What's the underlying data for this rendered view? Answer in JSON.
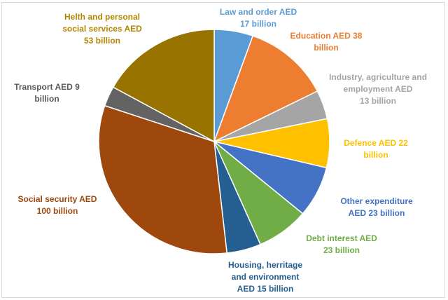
{
  "chart_data": {
    "type": "pie",
    "start": "top, clockwise",
    "slices": [
      {
        "label": "Law and order AED 17 billion",
        "lines": [
          "Law and order AED",
          "17 billion"
        ],
        "value": 17,
        "color": "#5b9bd5"
      },
      {
        "label": "Education AED 38 billion",
        "lines": [
          "Education AED 38",
          "billion"
        ],
        "value": 38,
        "color": "#ed7d31"
      },
      {
        "label": "Industry, agriculture and employment AED 13 billion",
        "lines": [
          "Industry, agriculture and",
          "employment AED",
          "13 billion"
        ],
        "value": 13,
        "color": "#a5a5a5"
      },
      {
        "label": "Defence AED 22 billion",
        "lines": [
          "Defence AED 22",
          "billion"
        ],
        "value": 22,
        "color": "#ffc000"
      },
      {
        "label": "Other expenditure AED 23 billion",
        "lines": [
          "Other expenditure",
          "AED 23 billion"
        ],
        "value": 23,
        "color": "#4472c4"
      },
      {
        "label": "Debt interest AED 23 billion",
        "lines": [
          "Debt interest AED",
          "23 billion"
        ],
        "value": 23,
        "color": "#70ad47"
      },
      {
        "label": "Housing, herritage and environment AED 15 billion",
        "lines": [
          "Housing, herritage",
          "and environment",
          "AED 15 billion"
        ],
        "value": 15,
        "color": "#255e91"
      },
      {
        "label": "Social security AED 100 billion",
        "lines": [
          "Social security AED",
          "100 billion"
        ],
        "value": 100,
        "color": "#9e480e"
      },
      {
        "label": "Transport AED 9 billion",
        "lines": [
          "Transport AED 9",
          "billion"
        ],
        "value": 9,
        "color": "#636363"
      },
      {
        "label": "Helth and personal social services AED 53 billion",
        "lines": [
          "Helth and personal",
          "social services AED",
          "53 billion"
        ],
        "value": 53,
        "color": "#997300"
      }
    ],
    "label_colors": [
      "#5b9bd5",
      "#ed7d31",
      "#a5a5a5",
      "#ffc000",
      "#4472c4",
      "#70ad47",
      "#255e91",
      "#9e480e",
      "#595959",
      "#b38600"
    ]
  }
}
